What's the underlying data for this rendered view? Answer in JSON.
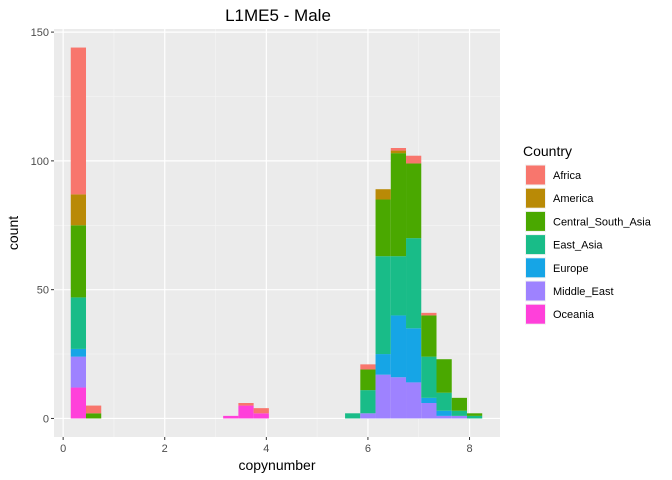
{
  "chart_data": {
    "type": "bar",
    "stacked": true,
    "title": "L1ME5 - Male",
    "xlabel": "copynumber",
    "ylabel": "count",
    "xlim": [
      -0.18,
      8.6
    ],
    "ylim": [
      -7.2,
      151.2
    ],
    "xticks": [
      0,
      2,
      4,
      6,
      8
    ],
    "yticks": [
      0,
      50,
      100,
      150
    ],
    "grid": true,
    "legend": {
      "title": "Country",
      "placement": "right"
    },
    "bin_width": 0.3,
    "x": [
      0.3,
      0.6,
      3.3,
      3.6,
      3.9,
      5.7,
      6.0,
      6.3,
      6.6,
      6.9,
      7.2,
      7.5,
      7.8,
      8.1
    ],
    "series": [
      {
        "name": "Oceania",
        "color": "#FF40DA",
        "values": [
          12,
          0,
          1,
          5,
          2,
          0,
          0,
          0,
          0,
          0,
          0,
          0,
          0,
          0
        ]
      },
      {
        "name": "Middle_East",
        "color": "#9E82FF",
        "values": [
          12,
          0,
          0,
          0,
          0,
          0,
          2,
          17,
          16,
          14,
          6,
          1,
          1,
          0
        ]
      },
      {
        "name": "Europe",
        "color": "#16A5E6",
        "values": [
          3,
          0,
          0,
          0,
          0,
          0,
          0,
          8,
          24,
          21,
          2,
          2,
          0,
          0
        ]
      },
      {
        "name": "East_Asia",
        "color": "#19BC88",
        "values": [
          20,
          0,
          0,
          0,
          0,
          2,
          9,
          38,
          23,
          35,
          16,
          7,
          2,
          1
        ]
      },
      {
        "name": "Central_South_Asia",
        "color": "#4AA800",
        "values": [
          28,
          2,
          0,
          0,
          0,
          0,
          8,
          22,
          40,
          29,
          16,
          13,
          5,
          1
        ]
      },
      {
        "name": "America",
        "color": "#B98A06",
        "values": [
          12,
          0,
          0,
          0,
          0,
          0,
          0,
          4,
          1,
          0,
          0,
          0,
          0,
          0
        ]
      },
      {
        "name": "Africa",
        "color": "#F8766D",
        "values": [
          57,
          3,
          0,
          1,
          2,
          0,
          2,
          0,
          1,
          3,
          1,
          0,
          0,
          0
        ]
      }
    ],
    "legend_order": [
      "Africa",
      "America",
      "Central_South_Asia",
      "East_Asia",
      "Europe",
      "Middle_East",
      "Oceania"
    ]
  }
}
